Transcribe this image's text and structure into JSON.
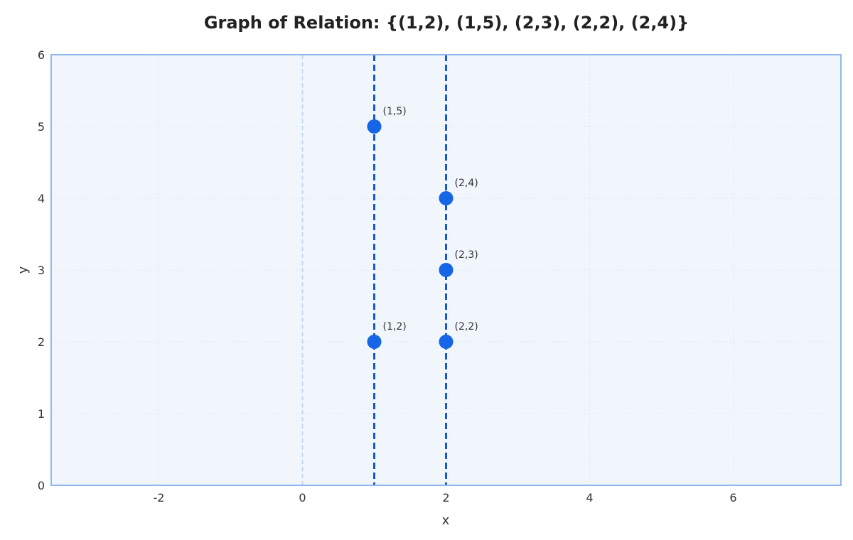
{
  "chart_data": {
    "type": "scatter",
    "title": "Graph of Relation: {(1,2), (1,5), (2,3), (2,2), (2,4)}",
    "xlabel": "x",
    "ylabel": "y",
    "xlim": [
      -3.5,
      7.5
    ],
    "ylim": [
      0,
      6
    ],
    "x_ticks": [
      -2,
      0,
      2,
      4,
      6
    ],
    "y_ticks": [
      0,
      1,
      2,
      3,
      4,
      5,
      6
    ],
    "grid": true,
    "points": [
      {
        "x": 1,
        "y": 2,
        "label": "(1,2)"
      },
      {
        "x": 1,
        "y": 5,
        "label": "(1,5)"
      },
      {
        "x": 2,
        "y": 3,
        "label": "(2,3)"
      },
      {
        "x": 2,
        "y": 2,
        "label": "(2,2)"
      },
      {
        "x": 2,
        "y": 4,
        "label": "(2,4)"
      }
    ],
    "vertical_lines": [
      1,
      2
    ],
    "zero_line_x": 0,
    "colors": {
      "point": "#1565e6",
      "vline": "#1458d6",
      "plot_bg": "#f1f6fd",
      "frame": "#90b8ec",
      "zero_line": "#c3d9f3",
      "grid": "#dde6f2"
    }
  }
}
